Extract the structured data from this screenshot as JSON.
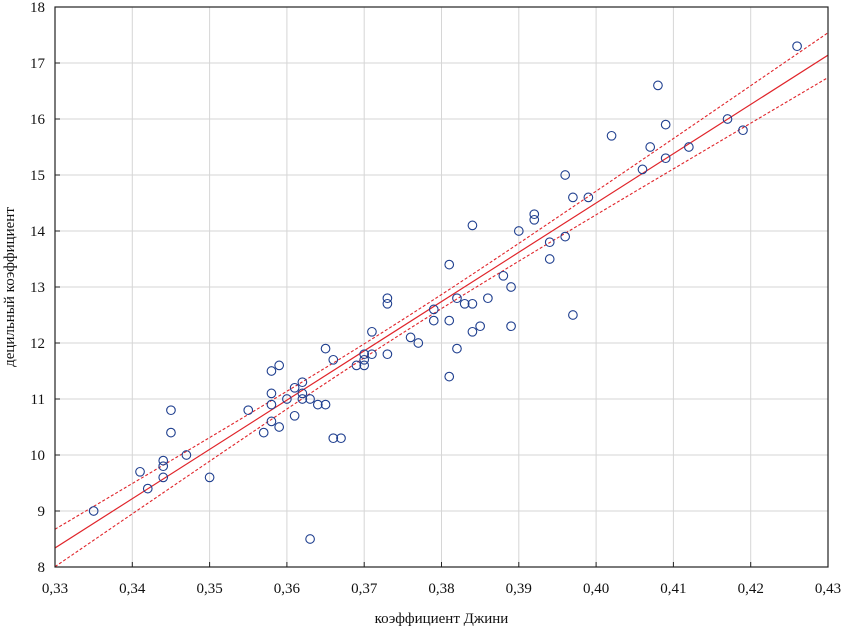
{
  "chart_data": {
    "type": "scatter",
    "xlabel": "коэффициент Джини",
    "ylabel": "децильный коэффициент",
    "xlim": [
      0.33,
      0.43
    ],
    "ylim": [
      8,
      18
    ],
    "x_ticks": [
      "0,33",
      "0,34",
      "0,35",
      "0,36",
      "0,37",
      "0,38",
      "0,39",
      "0,40",
      "0,41",
      "0,42",
      "0,43"
    ],
    "y_ticks": [
      "8",
      "9",
      "10",
      "11",
      "12",
      "13",
      "14",
      "15",
      "16",
      "17",
      "18"
    ],
    "grid": true,
    "colors": {
      "points": "#1f3f8f",
      "fit_line": "#e0242a",
      "confidence_band": "#e0242a"
    },
    "fit_line": {
      "slope": 88,
      "intercept": -20.7
    },
    "confidence_band": {
      "half_width_at_ends": 0.4,
      "half_width_at_center": 0.12,
      "center_x": 0.375
    },
    "points": [
      [
        0.335,
        9.0
      ],
      [
        0.341,
        9.7
      ],
      [
        0.342,
        9.4
      ],
      [
        0.344,
        9.9
      ],
      [
        0.344,
        9.8
      ],
      [
        0.344,
        9.6
      ],
      [
        0.345,
        10.8
      ],
      [
        0.345,
        10.4
      ],
      [
        0.347,
        10.0
      ],
      [
        0.35,
        9.6
      ],
      [
        0.355,
        10.8
      ],
      [
        0.357,
        10.4
      ],
      [
        0.358,
        11.5
      ],
      [
        0.358,
        11.1
      ],
      [
        0.358,
        10.9
      ],
      [
        0.358,
        10.6
      ],
      [
        0.359,
        11.6
      ],
      [
        0.359,
        10.5
      ],
      [
        0.36,
        11.0
      ],
      [
        0.361,
        11.2
      ],
      [
        0.361,
        10.7
      ],
      [
        0.362,
        11.3
      ],
      [
        0.362,
        11.1
      ],
      [
        0.362,
        11.0
      ],
      [
        0.363,
        11.0
      ],
      [
        0.363,
        8.5
      ],
      [
        0.364,
        10.9
      ],
      [
        0.365,
        11.9
      ],
      [
        0.365,
        10.9
      ],
      [
        0.366,
        11.7
      ],
      [
        0.366,
        10.3
      ],
      [
        0.367,
        10.3
      ],
      [
        0.369,
        11.6
      ],
      [
        0.37,
        11.8
      ],
      [
        0.37,
        11.7
      ],
      [
        0.37,
        11.6
      ],
      [
        0.371,
        12.2
      ],
      [
        0.371,
        11.8
      ],
      [
        0.373,
        12.8
      ],
      [
        0.373,
        12.7
      ],
      [
        0.373,
        11.8
      ],
      [
        0.376,
        12.1
      ],
      [
        0.377,
        12.0
      ],
      [
        0.379,
        12.6
      ],
      [
        0.379,
        12.4
      ],
      [
        0.381,
        13.4
      ],
      [
        0.381,
        12.4
      ],
      [
        0.381,
        11.4
      ],
      [
        0.382,
        12.8
      ],
      [
        0.382,
        11.9
      ],
      [
        0.383,
        12.7
      ],
      [
        0.384,
        14.1
      ],
      [
        0.384,
        12.7
      ],
      [
        0.384,
        12.2
      ],
      [
        0.385,
        12.3
      ],
      [
        0.386,
        12.8
      ],
      [
        0.388,
        13.2
      ],
      [
        0.389,
        13.0
      ],
      [
        0.389,
        12.3
      ],
      [
        0.39,
        14.0
      ],
      [
        0.392,
        14.3
      ],
      [
        0.392,
        14.2
      ],
      [
        0.394,
        13.8
      ],
      [
        0.394,
        13.5
      ],
      [
        0.396,
        15.0
      ],
      [
        0.396,
        13.9
      ],
      [
        0.397,
        14.6
      ],
      [
        0.397,
        12.5
      ],
      [
        0.399,
        14.6
      ],
      [
        0.402,
        15.7
      ],
      [
        0.406,
        15.1
      ],
      [
        0.407,
        15.5
      ],
      [
        0.408,
        16.6
      ],
      [
        0.409,
        15.9
      ],
      [
        0.409,
        15.3
      ],
      [
        0.412,
        15.5
      ],
      [
        0.417,
        16.0
      ],
      [
        0.419,
        15.8
      ],
      [
        0.426,
        17.3
      ]
    ]
  }
}
